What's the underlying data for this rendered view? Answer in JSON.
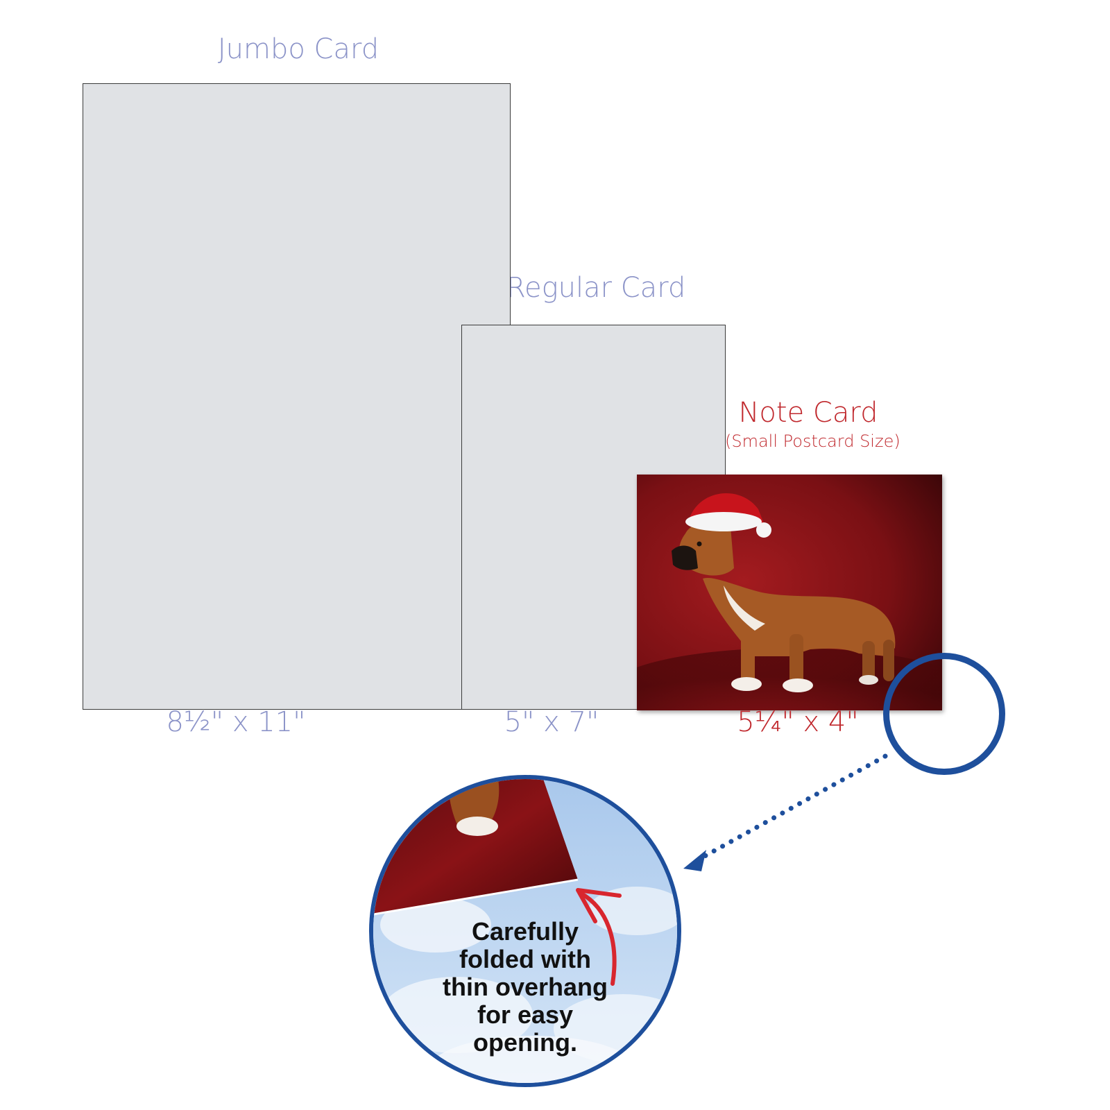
{
  "cards": {
    "jumbo": {
      "title": "Jumbo Card",
      "size": "8½\"  x 11\""
    },
    "regular": {
      "title": "Regular Card",
      "size": "5\" x 7\""
    },
    "note": {
      "title": "Note Card",
      "subtitle": "(Small Postcard Size)",
      "size": "5¼\" x 4\""
    }
  },
  "callout": {
    "lines": [
      "Carefully",
      "folded with",
      "thin overhang",
      "for easy",
      "opening."
    ]
  },
  "colors": {
    "standard_label": "#8b93c8",
    "note_label": "#c0282d",
    "card_fill": "#e0e2e5",
    "ring": "#1e4f9c",
    "arrow": "#d8262e"
  }
}
